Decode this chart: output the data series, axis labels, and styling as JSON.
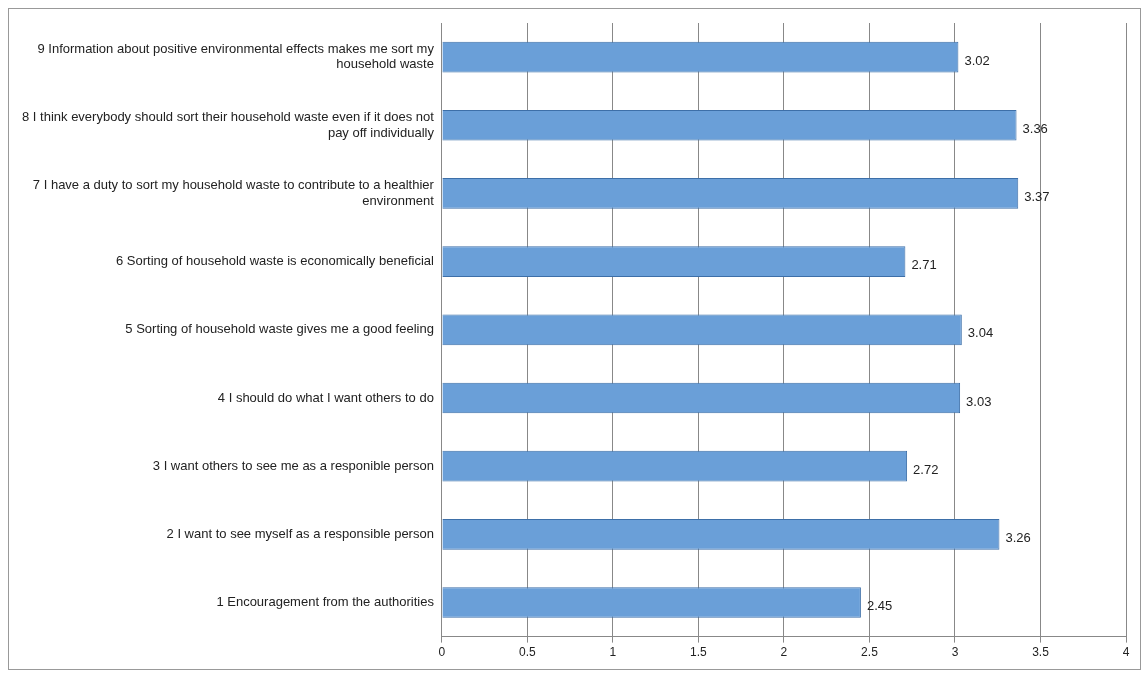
{
  "chart_data": {
    "type": "bar",
    "orientation": "horizontal",
    "categories": [
      "9 Information about positive environmental effects makes me sort my household waste",
      "8 I think everybody should sort their household waste even if it does not pay off individually",
      "7 I have a duty to sort my household waste to contribute to a healthier environment",
      "6 Sorting of household waste is economically beneficial",
      "5 Sorting of household waste gives me a good feeling",
      "4 I should do what I want others to do",
      "3 I want others to see me as a responible person",
      "2 I want to see myself as a responsible person",
      "1 Encouragement from the authorities"
    ],
    "values": [
      3.02,
      3.36,
      3.37,
      2.71,
      3.04,
      3.03,
      2.72,
      3.26,
      2.45
    ],
    "color": "#6a9fd8",
    "xlim": [
      0,
      4
    ],
    "xticks": [
      0,
      0.5,
      1,
      1.5,
      2,
      2.5,
      3,
      3.5,
      4
    ],
    "grid": "x",
    "legend": false,
    "data_labels": true
  }
}
